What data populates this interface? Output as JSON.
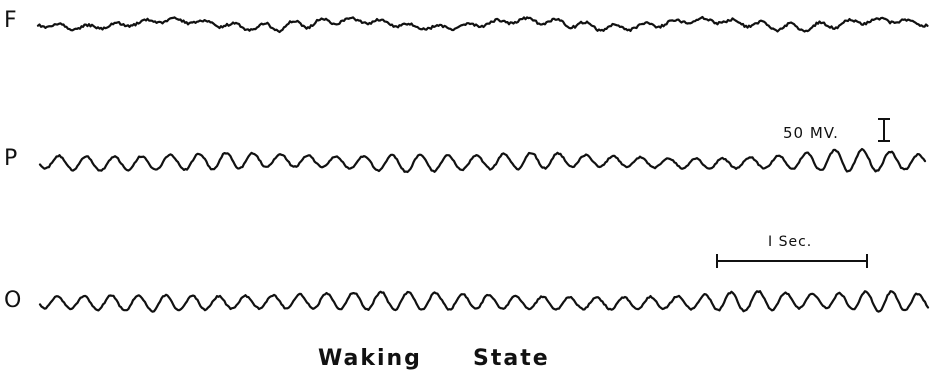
{
  "leads": [
    {
      "label": "F",
      "key": "frontal",
      "pattern": "low-amplitude irregular"
    },
    {
      "label": "P",
      "key": "parietal",
      "pattern": "rhythmic alpha"
    },
    {
      "label": "O",
      "key": "occipital",
      "pattern": "rhythmic alpha"
    }
  ],
  "calibration": {
    "amplitude_label": "50 MV.",
    "time_label": "I Sec."
  },
  "caption": {
    "word1": "Waking",
    "word2": "State"
  },
  "style": {
    "ink": "#111111",
    "background": "#ffffff"
  }
}
